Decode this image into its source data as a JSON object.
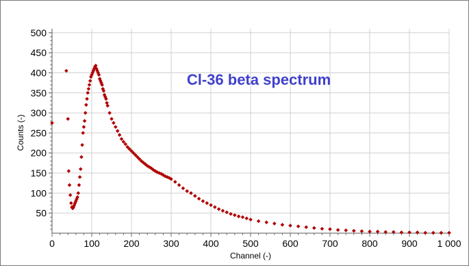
{
  "chart_data": {
    "type": "scatter",
    "title": "Cl-36 beta spectrum",
    "xlabel": "Channel (-)",
    "ylabel": "Counts (-)",
    "xlim": [
      0,
      1000
    ],
    "ylim": [
      0,
      510
    ],
    "x_ticks": [
      0,
      100,
      200,
      300,
      400,
      500,
      600,
      700,
      800,
      900,
      1000
    ],
    "x_tick_labels": [
      "0",
      "100",
      "200",
      "300",
      "400",
      "500",
      "600",
      "700",
      "800",
      "900",
      "1 000"
    ],
    "y_ticks": [
      50,
      100,
      150,
      200,
      250,
      300,
      350,
      400,
      450,
      500
    ],
    "y_tick_labels": [
      "50",
      "100",
      "150",
      "200",
      "250",
      "300",
      "350",
      "400",
      "450",
      "500"
    ],
    "grid": true,
    "marker_color": "#b00000",
    "series": [
      {
        "name": "",
        "x": [
          0,
          36,
          40,
          42,
          44,
          46,
          48,
          50,
          52,
          54,
          56,
          58,
          60,
          62,
          64,
          66,
          68,
          70,
          72,
          74,
          76,
          78,
          80,
          82,
          84,
          86,
          88,
          90,
          92,
          94,
          96,
          98,
          100,
          102,
          104,
          106,
          108,
          110,
          112,
          114,
          116,
          118,
          120,
          122,
          124,
          126,
          128,
          130,
          132,
          134,
          136,
          138,
          140,
          145,
          150,
          155,
          160,
          165,
          170,
          175,
          180,
          185,
          190,
          195,
          200,
          205,
          210,
          215,
          220,
          225,
          230,
          235,
          240,
          245,
          250,
          255,
          260,
          265,
          270,
          275,
          280,
          285,
          290,
          295,
          300,
          310,
          320,
          330,
          340,
          350,
          360,
          370,
          380,
          390,
          400,
          410,
          420,
          430,
          440,
          450,
          460,
          470,
          480,
          490,
          500,
          520,
          540,
          560,
          580,
          600,
          620,
          640,
          660,
          680,
          700,
          720,
          740,
          760,
          780,
          800,
          820,
          840,
          860,
          880,
          900,
          920,
          940,
          960,
          980,
          1000
        ],
        "y": [
          275,
          405,
          285,
          155,
          120,
          95,
          75,
          65,
          62,
          65,
          70,
          75,
          80,
          85,
          90,
          100,
          120,
          140,
          160,
          190,
          220,
          250,
          265,
          280,
          300,
          320,
          335,
          350,
          360,
          370,
          380,
          390,
          395,
          400,
          405,
          410,
          415,
          418,
          410,
          405,
          400,
          395,
          385,
          380,
          375,
          370,
          360,
          355,
          345,
          340,
          335,
          325,
          318,
          300,
          285,
          275,
          265,
          255,
          245,
          235,
          228,
          222,
          215,
          210,
          205,
          200,
          195,
          190,
          185,
          180,
          176,
          172,
          168,
          165,
          162,
          158,
          155,
          152,
          150,
          148,
          145,
          142,
          140,
          138,
          135,
          128,
          120,
          112,
          105,
          100,
          93,
          86,
          80,
          75,
          70,
          65,
          60,
          56,
          52,
          48,
          45,
          42,
          40,
          37,
          34,
          30,
          27,
          24,
          21,
          19,
          17,
          15,
          13,
          11,
          10,
          8,
          7,
          6,
          5,
          4,
          4,
          3,
          3,
          2,
          2,
          2,
          1,
          1,
          1,
          1
        ]
      }
    ]
  }
}
